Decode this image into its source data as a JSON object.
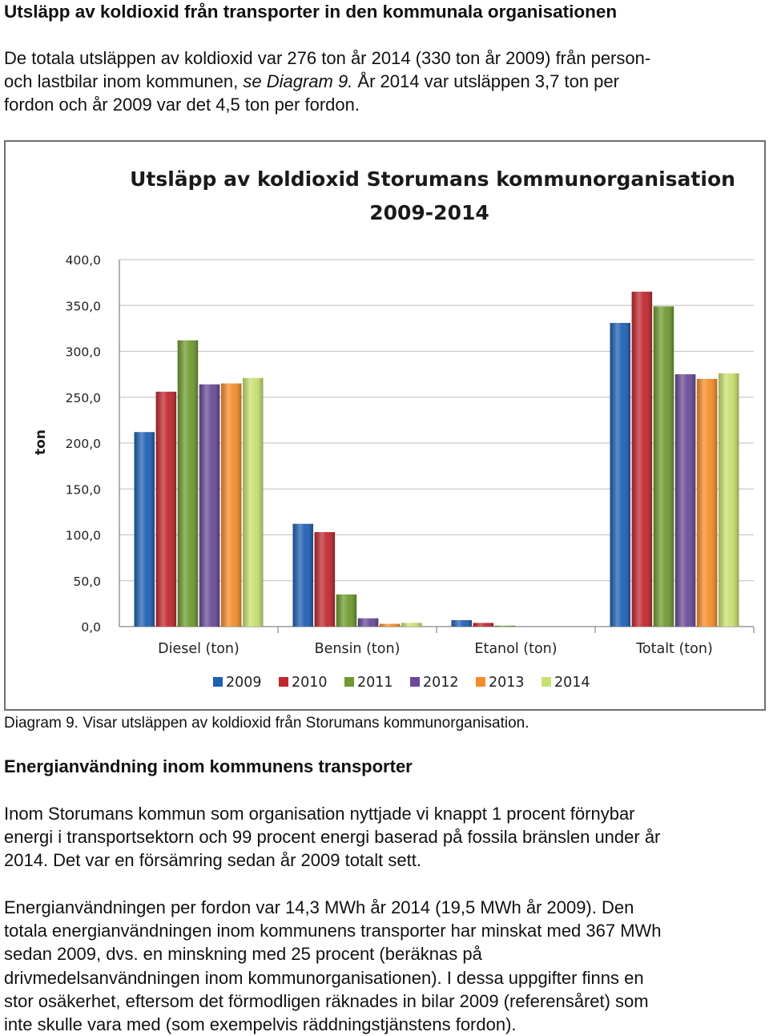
{
  "heading": "Utsläpp av koldioxid från transporter in den kommunala organisationen",
  "intro": {
    "line1": "De totala utsläppen av koldioxid var 276 ton år 2014 (330 ton år 2009) från person-",
    "line2_before": "och lastbilar inom kommunen, ",
    "line2_italic": "se Diagram 9.",
    "line2_after": " År 2014 var utsläppen 3,7 ton per",
    "line3": "fordon och år 2009 var det 4,5 ton per fordon."
  },
  "caption": "Diagram 9. Visar utsläppen av koldioxid från Storumans kommunorganisation.",
  "section_heading": "Energianvändning inom kommunens transporter",
  "paragraph1": [
    "Inom Storumans kommun som organisation nyttjade vi knappt 1 procent förnybar",
    "energi i transportsektorn och 99 procent energi baserad på fossila bränslen under år",
    "2014. Det var en försämring sedan år 2009 totalt sett."
  ],
  "paragraph2": [
    "Energianvändningen per fordon var 14,3 MWh år 2014 (19,5 MWh år 2009). Den",
    "totala energianvändningen inom kommunens transporter har minskat med 367 MWh",
    "sedan 2009, dvs. en minskning med 25 procent (beräknas på",
    "drivmedelsanvändningen inom kommunorganisationen). I dessa uppgifter finns en",
    "stor osäkerhet, eftersom det förmodligen räknades in bilar 2009 (referensåret) som",
    "inte skulle vara med (som exempelvis räddningstjänstens fordon)."
  ],
  "chart_data": {
    "type": "bar",
    "title_line1": "Utsläpp av koldioxid Storumans kommunorganisation",
    "title_line2": "2009-2014",
    "ylabel": "ton",
    "ylim": [
      0,
      400
    ],
    "y_ticks": [
      "0,0",
      "50,0",
      "100,0",
      "150,0",
      "200,0",
      "250,0",
      "300,0",
      "350,0",
      "400,0"
    ],
    "y_tick_values": [
      0,
      50,
      100,
      150,
      200,
      250,
      300,
      350,
      400
    ],
    "grid": true,
    "legend_position": "bottom",
    "categories": [
      "Diesel (ton)",
      "Bensin (ton)",
      "Etanol (ton)",
      "Totalt (ton)"
    ],
    "series": [
      {
        "name": "2009",
        "color": "#1f5fb5",
        "values": [
          212,
          112,
          7,
          331
        ]
      },
      {
        "name": "2010",
        "color": "#c0282e",
        "values": [
          256,
          103,
          4,
          365
        ]
      },
      {
        "name": "2011",
        "color": "#6e9a2f",
        "values": [
          312,
          35,
          1,
          349
        ]
      },
      {
        "name": "2012",
        "color": "#6a4a98",
        "values": [
          264,
          9,
          0,
          275
        ]
      },
      {
        "name": "2013",
        "color": "#f58c2a",
        "values": [
          265,
          3,
          0,
          270
        ]
      },
      {
        "name": "2014",
        "color": "#c8e070",
        "values": [
          271,
          4,
          0,
          276
        ]
      }
    ]
  }
}
